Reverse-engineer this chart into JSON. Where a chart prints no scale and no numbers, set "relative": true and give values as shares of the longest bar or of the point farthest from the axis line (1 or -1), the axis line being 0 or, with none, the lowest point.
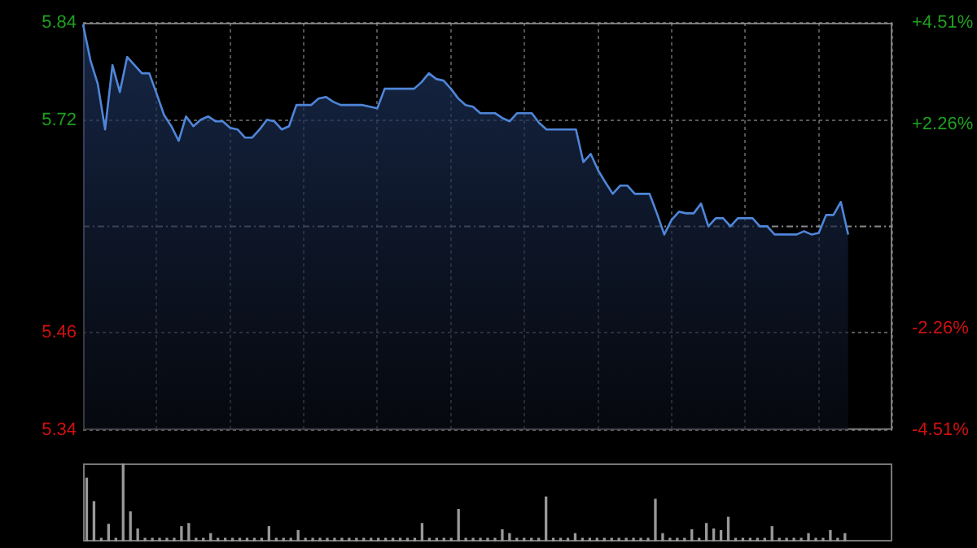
{
  "chart_data": [
    {
      "type": "area",
      "categories": [
        null,
        null,
        null,
        null,
        null,
        null,
        null,
        null,
        null,
        null,
        null,
        null,
        null,
        null,
        null,
        null,
        null,
        null,
        null,
        null,
        null,
        null,
        null,
        null,
        null,
        null,
        null,
        null,
        null,
        null,
        null,
        null,
        null,
        null,
        null,
        null,
        null,
        null,
        null,
        null,
        null,
        null,
        null,
        null,
        null,
        null,
        null,
        null,
        null,
        null,
        null,
        null,
        null,
        null,
        null,
        null,
        null,
        null,
        null,
        null,
        null,
        null,
        null,
        null,
        null,
        null,
        null,
        null,
        null,
        null,
        null,
        null,
        null,
        null,
        null,
        null,
        null,
        null,
        null,
        null,
        null,
        null,
        null,
        null,
        null,
        null,
        null,
        null,
        null,
        null,
        null,
        null,
        null,
        null,
        null,
        null,
        null,
        null,
        null,
        null,
        null,
        null,
        null,
        null,
        null,
        null,
        null,
        null,
        null,
        null,
        null
      ],
      "series": [
        {
          "color": "#4f86d9",
          "values": [
            5.838,
            5.794,
            5.765,
            5.709,
            5.788,
            5.755,
            5.798,
            5.788,
            5.778,
            5.778,
            5.753,
            5.727,
            5.713,
            5.695,
            5.725,
            5.713,
            5.721,
            5.725,
            5.719,
            5.719,
            5.711,
            5.709,
            5.699,
            5.699,
            5.709,
            5.721,
            5.719,
            5.709,
            5.713,
            5.739,
            5.739,
            5.739,
            5.747,
            5.749,
            5.743,
            5.739,
            5.739,
            5.739,
            5.739,
            5.737,
            5.735,
            5.759,
            5.759,
            5.759,
            5.759,
            5.759,
            5.767,
            5.778,
            5.771,
            5.769,
            5.759,
            5.747,
            5.739,
            5.737,
            5.729,
            5.729,
            5.729,
            5.723,
            5.719,
            5.729,
            5.729,
            5.729,
            5.717,
            5.709,
            5.709,
            5.709,
            5.709,
            5.709,
            5.669,
            5.679,
            5.659,
            5.644,
            5.63,
            5.64,
            5.64,
            5.63,
            5.63,
            5.63,
            5.606,
            5.58,
            5.598,
            5.608,
            5.606,
            5.606,
            5.618,
            5.59,
            5.6,
            5.6,
            5.59,
            5.6,
            5.6,
            5.6,
            5.59,
            5.59,
            5.58,
            5.58,
            5.58,
            5.58,
            5.584,
            5.58,
            5.582,
            5.604,
            5.604,
            5.62,
            5.58,
            null,
            null,
            null,
            null,
            null,
            null
          ]
        }
      ],
      "ylim": [
        5.34,
        5.84
      ],
      "yticks": [
        5.34,
        5.46,
        5.72,
        5.84
      ],
      "y2lim": [
        -4.51,
        4.51
      ],
      "y2ticks": [
        {
          "value": -4.51,
          "label": "-4.51%"
        },
        {
          "value": -2.26,
          "label": "-2.26%"
        },
        {
          "value": 2.26,
          "label": "+2.26%"
        },
        {
          "value": 4.51,
          "label": "+4.51%"
        }
      ],
      "ref_lines": [
        {
          "axis": "y",
          "value": 5.59,
          "color": "#888888",
          "line_style": "dashed"
        }
      ],
      "grid": true,
      "tick_labels": "y"
    },
    {
      "type": "bar",
      "relative": true,
      "color": "#999999",
      "categories": [
        null,
        null,
        null,
        null,
        null,
        null,
        null,
        null,
        null,
        null,
        null,
        null,
        null,
        null,
        null,
        null,
        null,
        null,
        null,
        null,
        null,
        null,
        null,
        null,
        null,
        null,
        null,
        null,
        null,
        null,
        null,
        null,
        null,
        null,
        null,
        null,
        null,
        null,
        null,
        null,
        null,
        null,
        null,
        null,
        null,
        null,
        null,
        null,
        null,
        null,
        null,
        null,
        null,
        null,
        null,
        null,
        null,
        null,
        null,
        null,
        null,
        null,
        null,
        null,
        null,
        null,
        null,
        null,
        null,
        null,
        null,
        null,
        null,
        null,
        null,
        null,
        null,
        null,
        null,
        null,
        null,
        null,
        null,
        null,
        null,
        null,
        null,
        null,
        null,
        null,
        null,
        null,
        null,
        null,
        null,
        null,
        null,
        null,
        null,
        null,
        null,
        null,
        null,
        null,
        null,
        null,
        null,
        null,
        null,
        null,
        null
      ],
      "values": [
        0.81,
        0.51,
        0.04,
        0.22,
        0.04,
        1,
        0.38,
        0.16,
        0.04,
        0.04,
        0.04,
        0.04,
        0.04,
        0.19,
        0.23,
        0.04,
        0.04,
        0.1,
        0.04,
        0.04,
        0.04,
        0.04,
        0.04,
        0.04,
        0.04,
        0.19,
        0.04,
        0.04,
        0.04,
        0.14,
        0.04,
        0.04,
        0.04,
        0.04,
        0.04,
        0.04,
        0.04,
        0.04,
        0.04,
        0.04,
        0.04,
        0.04,
        0.04,
        0.04,
        0.04,
        0.04,
        0.23,
        0.04,
        0.04,
        0.04,
        0.04,
        0.41,
        0.04,
        0.04,
        0.04,
        0.04,
        0.04,
        0.15,
        0.1,
        0.04,
        0.04,
        0.04,
        0.04,
        0.57,
        0.04,
        0.04,
        0.04,
        0.1,
        0.04,
        0.04,
        0.04,
        0.04,
        0.04,
        0.04,
        0.04,
        0.04,
        0.04,
        0.04,
        0.54,
        0.1,
        0.04,
        0.04,
        0.04,
        0.15,
        0.04,
        0.23,
        0.16,
        0.14,
        0.31,
        0.04,
        0.04,
        0.04,
        0.04,
        0.04,
        0.19,
        0.04,
        0.04,
        0.04,
        0.04,
        0.1,
        0.04,
        0.04,
        0.14,
        0.04,
        0.1,
        null,
        null,
        null,
        null,
        null,
        null
      ]
    }
  ]
}
